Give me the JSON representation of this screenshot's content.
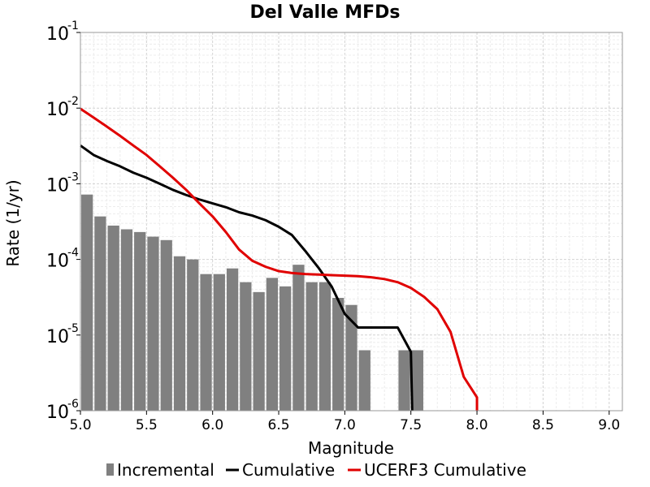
{
  "chart_data": {
    "type": "bar+line",
    "title": "Del Valle MFDs",
    "xlabel": "Magnitude",
    "ylabel": "Rate (1/yr)",
    "xlim": [
      5.0,
      9.1
    ],
    "ylim": [
      1e-06,
      0.1
    ],
    "yscale": "log",
    "grid": true,
    "xticks": [
      "5.0",
      "5.5",
      "6.0",
      "6.5",
      "7.0",
      "7.5",
      "8.0",
      "8.5",
      "9.0"
    ],
    "xtick_values": [
      5.0,
      5.5,
      6.0,
      6.5,
      7.0,
      7.5,
      8.0,
      8.5,
      9.0
    ],
    "yticks": [
      {
        "value": 1e-06,
        "base": "10",
        "exp": "-6"
      },
      {
        "value": 1e-05,
        "base": "10",
        "exp": "-5"
      },
      {
        "value": 0.0001,
        "base": "10",
        "exp": "-4"
      },
      {
        "value": 0.001,
        "base": "10",
        "exp": "-3"
      },
      {
        "value": 0.01,
        "base": "10",
        "exp": "-2"
      },
      {
        "value": 0.1,
        "base": "10",
        "exp": "-1"
      }
    ],
    "legend_position": "bottom",
    "series": [
      {
        "name": "Incremental",
        "kind": "bar",
        "color": "#808080",
        "bin_width": 0.1,
        "x": [
          5.05,
          5.15,
          5.25,
          5.35,
          5.45,
          5.55,
          5.65,
          5.75,
          5.85,
          5.95,
          6.05,
          6.15,
          6.25,
          6.35,
          6.45,
          6.55,
          6.65,
          6.75,
          6.85,
          6.95,
          7.05,
          7.15,
          7.45,
          7.55
        ],
        "values": [
          0.00072,
          0.00037,
          0.00028,
          0.00025,
          0.00023,
          0.0002,
          0.00018,
          0.00011,
          0.0001,
          6.4e-05,
          6.4e-05,
          7.6e-05,
          5e-05,
          3.7e-05,
          5.7e-05,
          4.4e-05,
          8.5e-05,
          5e-05,
          5e-05,
          3.1e-05,
          2.5e-05,
          6.3e-06,
          6.3e-06,
          6.3e-06
        ]
      },
      {
        "name": "Cumulative",
        "kind": "line",
        "color": "#000000",
        "x": [
          5.0,
          5.1,
          5.2,
          5.3,
          5.4,
          5.5,
          5.6,
          5.7,
          5.8,
          5.9,
          6.0,
          6.1,
          6.2,
          6.3,
          6.4,
          6.5,
          6.6,
          6.7,
          6.8,
          6.9,
          7.0,
          7.1,
          7.2,
          7.3,
          7.4,
          7.5,
          7.51
        ],
        "values": [
          0.0032,
          0.0024,
          0.002,
          0.0017,
          0.0014,
          0.0012,
          0.001,
          0.00083,
          0.00071,
          0.00062,
          0.00055,
          0.00049,
          0.00042,
          0.00038,
          0.00033,
          0.00027,
          0.00021,
          0.00013,
          7.8e-05,
          4.4e-05,
          1.9e-05,
          1.26e-05,
          1.26e-05,
          1.26e-05,
          1.26e-05,
          6e-06,
          1e-06
        ]
      },
      {
        "name": "UCERF3 Cumulative",
        "kind": "line",
        "color": "#e00000",
        "x": [
          5.0,
          5.1,
          5.2,
          5.3,
          5.4,
          5.5,
          5.6,
          5.7,
          5.8,
          5.9,
          6.0,
          6.1,
          6.2,
          6.3,
          6.4,
          6.5,
          6.6,
          6.7,
          6.8,
          6.9,
          7.0,
          7.1,
          7.2,
          7.3,
          7.4,
          7.5,
          7.6,
          7.7,
          7.8,
          7.9,
          8.0,
          8.0
        ],
        "values": [
          0.0098,
          0.0075,
          0.0057,
          0.0043,
          0.0032,
          0.0024,
          0.0017,
          0.0012,
          0.00083,
          0.00055,
          0.00037,
          0.00023,
          0.000135,
          9.6e-05,
          8e-05,
          7e-05,
          6.6e-05,
          6.4e-05,
          6.3e-05,
          6.2e-05,
          6.1e-05,
          6e-05,
          5.8e-05,
          5.5e-05,
          5e-05,
          4.2e-05,
          3.2e-05,
          2.2e-05,
          1.1e-05,
          2.8e-06,
          1.5e-06,
          1e-06
        ]
      }
    ]
  }
}
